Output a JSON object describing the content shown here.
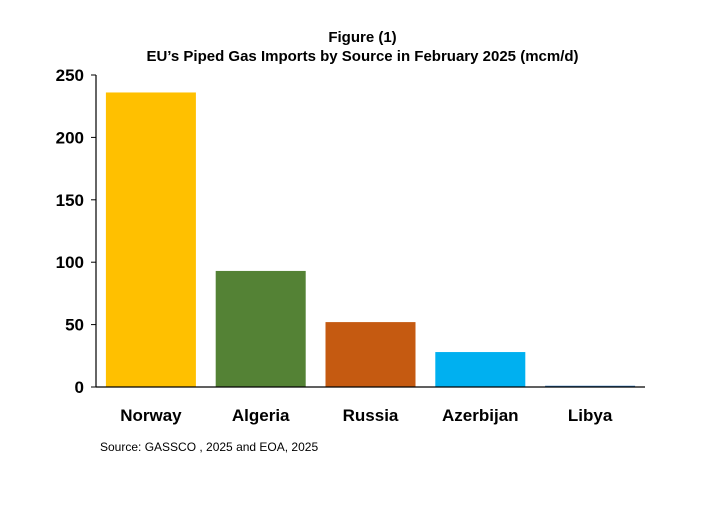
{
  "figure_label": "Figure (1)",
  "source": "Source: GASSCO , 2025 and  EOA, 2025",
  "chart_data": {
    "type": "bar",
    "title": "EU’s Piped Gas Imports by Source in February 2025 (mcm/d)",
    "categories": [
      "Norway",
      "Algeria",
      "Russia",
      "Azerbijan",
      "Libya"
    ],
    "values": [
      236,
      93,
      52,
      28,
      1
    ],
    "colors": [
      "#FFC000",
      "#548235",
      "#C55A11",
      "#00B0F0",
      "#2E75B6"
    ],
    "yticks": [
      "0",
      "50",
      "100",
      "150",
      "200",
      "250"
    ],
    "ylim": [
      0,
      250
    ],
    "xlabel": "",
    "ylabel": "",
    "grid": false
  }
}
